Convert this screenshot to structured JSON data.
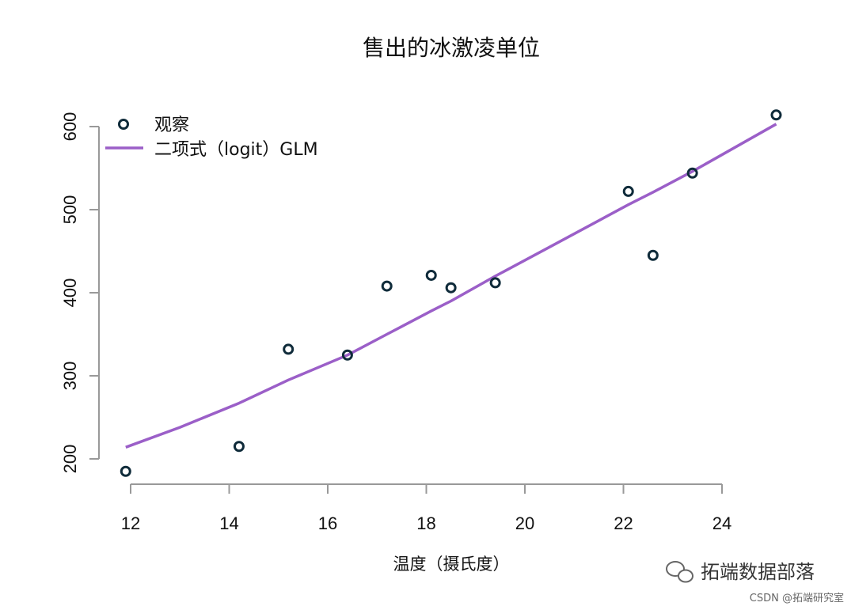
{
  "chart_data": {
    "type": "scatter",
    "title": "售出的冰激凌单位",
    "xlabel": "温度（摄氏度）",
    "ylabel": "",
    "xlim": [
      11.9,
      25.2
    ],
    "ylim": [
      200,
      600
    ],
    "xticks": [
      12,
      14,
      16,
      18,
      20,
      22,
      24
    ],
    "yticks": [
      200,
      300,
      400,
      500,
      600
    ],
    "grid": false,
    "legend_position": "top-left",
    "series": [
      {
        "name": "观察",
        "type": "scatter",
        "color": "#0f2b3a",
        "x": [
          11.9,
          14.2,
          15.2,
          16.4,
          17.2,
          18.1,
          18.5,
          19.4,
          22.1,
          22.6,
          23.4,
          25.1
        ],
        "y": [
          185,
          215,
          332,
          325,
          408,
          421,
          406,
          412,
          522,
          445,
          544,
          614
        ]
      },
      {
        "name": "二项式（logit）GLM",
        "type": "line",
        "color": "#9b5fc8",
        "x": [
          11.9,
          13.0,
          14.2,
          15.2,
          16.4,
          17.2,
          18.1,
          18.5,
          19.4,
          20.5,
          22.1,
          22.6,
          23.4,
          25.1
        ],
        "y": [
          214,
          238,
          267,
          295,
          325,
          350,
          378,
          390,
          420,
          455,
          506,
          521,
          546,
          603
        ]
      }
    ]
  },
  "watermark": {
    "brand": "拓端数据部落",
    "source": "CSDN @拓端研究室"
  }
}
